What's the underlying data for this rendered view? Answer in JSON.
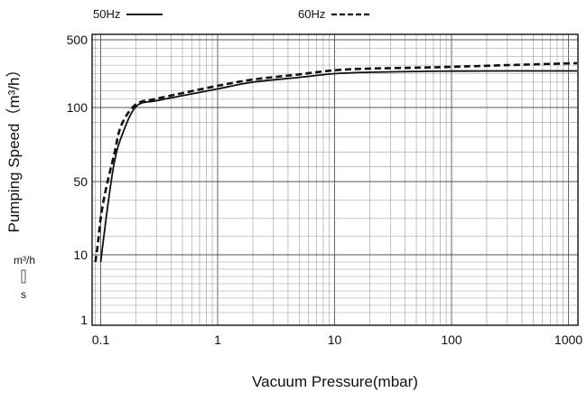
{
  "chart_data": {
    "type": "line",
    "title": "",
    "xlabel": "Vacuum Pressure(mbar)",
    "ylabel": "Pumping Speed（m³/h）",
    "x_scale": "log",
    "xlim": [
      0.08,
      1200
    ],
    "x_ticks": [
      0.1,
      1,
      10,
      100,
      1000
    ],
    "x_tick_labels": [
      "0.1",
      "1",
      "10",
      "100",
      "1000"
    ],
    "y_ticks": [
      1,
      10,
      50,
      100,
      500
    ],
    "y_tick_labels": [
      "1",
      "10",
      "50",
      "100",
      "500"
    ],
    "grid": true,
    "legend_position": "top",
    "unit_label_top": "m³/h",
    "unit_label_bottom": "s",
    "series": [
      {
        "name": "50Hz",
        "style": "solid",
        "x": [
          0.1,
          0.105,
          0.115,
          0.13,
          0.15,
          0.2,
          0.3,
          0.5,
          1,
          2,
          5,
          10,
          20,
          50,
          100,
          300,
          1200
        ],
        "y": [
          9,
          17,
          37,
          62,
          80,
          105,
          140,
          170,
          210,
          250,
          278,
          300,
          308,
          313,
          315,
          316,
          316
        ]
      },
      {
        "name": "60Hz",
        "style": "dashed",
        "x": [
          0.09,
          0.095,
          0.1,
          0.11,
          0.13,
          0.15,
          0.2,
          0.3,
          0.5,
          1,
          2,
          5,
          10,
          20,
          50,
          100,
          300,
          1200
        ],
        "y": [
          9,
          17,
          30,
          45,
          68,
          88,
          118,
          152,
          185,
          228,
          265,
          296,
          320,
          330,
          335,
          340,
          350,
          362
        ]
      }
    ]
  }
}
